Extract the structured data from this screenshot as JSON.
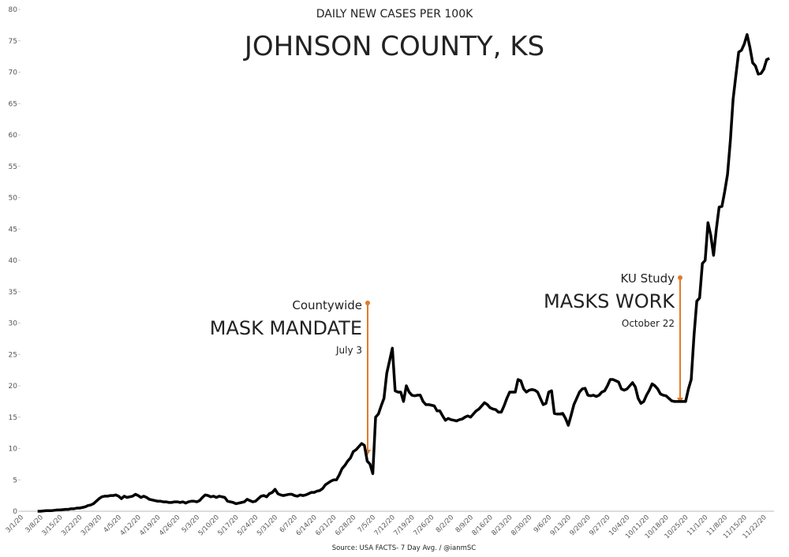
{
  "chart_data": {
    "type": "line",
    "title": "JOHNSON COUNTY, KS",
    "subtitle": "DAILY NEW CASES PER 100K",
    "source": "Source: USA FACTS- 7 Day Avg. / @ianmSC",
    "annotations": [
      {
        "lines": [
          "Countywide",
          "MASK MANDATE",
          "July 3"
        ],
        "color": "#e07b2a"
      },
      {
        "lines": [
          "KU Study",
          "MASKS WORK",
          "October 22"
        ],
        "color": "#e07b2a"
      }
    ],
    "categories": [
      "3/1/20",
      null,
      null,
      null,
      null,
      null,
      null,
      "3/8/20",
      null,
      null,
      null,
      null,
      null,
      null,
      "3/15/20",
      null,
      null,
      null,
      null,
      null,
      null,
      "3/22/20",
      null,
      null,
      null,
      null,
      null,
      null,
      "3/29/20",
      null,
      null,
      null,
      null,
      null,
      null,
      "4/5/20",
      null,
      null,
      null,
      null,
      null,
      null,
      "4/12/20",
      null,
      null,
      null,
      null,
      null,
      null,
      "4/19/20",
      null,
      null,
      null,
      null,
      null,
      null,
      "4/26/20",
      null,
      null,
      null,
      null,
      null,
      null,
      "5/3/20",
      null,
      null,
      null,
      null,
      null,
      null,
      "5/10/20",
      null,
      null,
      null,
      null,
      null,
      null,
      "5/17/20",
      null,
      null,
      null,
      null,
      null,
      null,
      "5/24/20",
      null,
      null,
      null,
      null,
      null,
      null,
      "5/31/20",
      null,
      null,
      null,
      null,
      null,
      null,
      "6/7/20",
      null,
      null,
      null,
      null,
      null,
      null,
      "6/14/20",
      null,
      null,
      null,
      null,
      null,
      null,
      "6/21/20",
      null,
      null,
      null,
      null,
      null,
      null,
      "6/28/20",
      null,
      null,
      null,
      null,
      null,
      null,
      "7/5/20",
      null,
      null,
      null,
      null,
      null,
      null,
      "7/12/20",
      null,
      null,
      null,
      null,
      null,
      null,
      "7/19/20",
      null,
      null,
      null,
      null,
      null,
      null,
      "7/26/20",
      null,
      null,
      null,
      null,
      null,
      null,
      "8/2/20",
      null,
      null,
      null,
      null,
      null,
      null,
      "8/9/20",
      null,
      null,
      null,
      null,
      null,
      null,
      "8/16/20",
      null,
      null,
      null,
      null,
      null,
      null,
      "8/23/20",
      null,
      null,
      null,
      null,
      null,
      null,
      "8/30/20",
      null,
      null,
      null,
      null,
      null,
      null,
      "9/6/20",
      null,
      null,
      null,
      null,
      null,
      null,
      "9/13/20",
      null,
      null,
      null,
      null,
      null,
      null,
      "9/20/20",
      null,
      null,
      null,
      null,
      null,
      null,
      "9/27/20",
      null,
      null,
      null,
      null,
      null,
      null,
      "10/4/20",
      null,
      null,
      null,
      null,
      null,
      null,
      "10/11/20",
      null,
      null,
      null,
      null,
      null,
      null,
      "10/18/20",
      null,
      null,
      null,
      null,
      null,
      null,
      "10/25/20",
      null,
      null,
      null,
      null,
      null,
      null,
      "11/1/20",
      null,
      null,
      null,
      null,
      null,
      null,
      "11/8/20",
      null,
      null,
      null,
      null,
      null,
      null,
      "11/15/20",
      null,
      null,
      null,
      null,
      null,
      null,
      "11/22/20",
      null
    ],
    "series": [
      {
        "name": "7 Day Avg.",
        "color": "#000000",
        "values": [
          null,
          null,
          null,
          null,
          null,
          0,
          0,
          0.05,
          0.1,
          0.1,
          0.1,
          0.15,
          0.2,
          0.2,
          0.25,
          0.3,
          0.3,
          0.4,
          0.4,
          0.5,
          0.5,
          0.6,
          0.7,
          0.9,
          1.0,
          1.2,
          1.6,
          2.0,
          2.3,
          2.4,
          2.4,
          2.5,
          2.5,
          2.6,
          2.4,
          2.0,
          2.4,
          2.2,
          2.3,
          2.4,
          2.7,
          2.5,
          2.2,
          2.4,
          2.2,
          1.9,
          1.8,
          1.7,
          1.6,
          1.6,
          1.5,
          1.5,
          1.4,
          1.4,
          1.5,
          1.5,
          1.4,
          1.5,
          1.3,
          1.5,
          1.6,
          1.6,
          1.5,
          1.7,
          2.2,
          2.6,
          2.5,
          2.3,
          2.4,
          2.2,
          2.4,
          2.3,
          2.2,
          1.6,
          1.5,
          1.4,
          1.2,
          1.3,
          1.4,
          1.5,
          1.9,
          1.7,
          1.5,
          1.6,
          2.0,
          2.4,
          2.5,
          2.3,
          2.8,
          3.0,
          3.5,
          2.8,
          2.6,
          2.5,
          2.6,
          2.7,
          2.7,
          2.5,
          2.4,
          2.6,
          2.5,
          2.6,
          2.8,
          3.0,
          3.0,
          3.2,
          3.3,
          3.6,
          4.2,
          4.5,
          4.8,
          5.0,
          5.0,
          5.8,
          6.8,
          7.3,
          8.0,
          8.5,
          9.5,
          9.8,
          10.3,
          10.8,
          10.5,
          8.0,
          7.5,
          6.0,
          15.0,
          15.5,
          16.8,
          18.0,
          22.0,
          24.0,
          26.0,
          19.2,
          19.0,
          19.0,
          17.5,
          20.0,
          19.0,
          18.5,
          18.4,
          18.5,
          18.5,
          17.5,
          17.0,
          17.0,
          16.9,
          16.8,
          16.0,
          16.0,
          15.2,
          14.5,
          14.8,
          14.6,
          14.5,
          14.4,
          14.6,
          14.7,
          15.0,
          15.2,
          15.0,
          15.5,
          16.0,
          16.3,
          16.8,
          17.3,
          17.0,
          16.5,
          16.3,
          16.2,
          15.8,
          15.8,
          16.8,
          18.0,
          19.0,
          19.0,
          19.0,
          21.0,
          20.8,
          19.5,
          19.0,
          19.3,
          19.4,
          19.3,
          19.0,
          18.0,
          17.0,
          17.2,
          19.0,
          19.2,
          15.6,
          15.5,
          15.5,
          15.6,
          14.8,
          13.7,
          15.3,
          17.0,
          18.0,
          19.0,
          19.5,
          19.6,
          18.5,
          18.4,
          18.5,
          18.3,
          18.5,
          19.0,
          19.2,
          20.0,
          21.0,
          21.0,
          20.8,
          20.6,
          19.5,
          19.3,
          19.5,
          20.0,
          20.5,
          19.8,
          18.0,
          17.2,
          17.5,
          18.5,
          19.3,
          20.3,
          20.0,
          19.5,
          18.7,
          18.5,
          18.4,
          18.0,
          17.6,
          17.5,
          17.5,
          17.5,
          17.5,
          17.5,
          19.5,
          21.0,
          28.0,
          33.5,
          34.0,
          39.5,
          40.0,
          46.0,
          44.0,
          40.8,
          45.0,
          48.5,
          48.6,
          51.0,
          53.7,
          59.0,
          65.7,
          69.5,
          73.2,
          73.5,
          74.5,
          76.0,
          74.0,
          71.5,
          71.0,
          69.7,
          69.8,
          70.5,
          72.0,
          72.2
        ]
      }
    ],
    "ylim": [
      0,
      80
    ],
    "yticks": [
      0,
      5,
      10,
      15,
      20,
      25,
      30,
      35,
      40,
      45,
      50,
      55,
      60,
      65,
      70,
      75,
      80
    ],
    "grid": false
  }
}
